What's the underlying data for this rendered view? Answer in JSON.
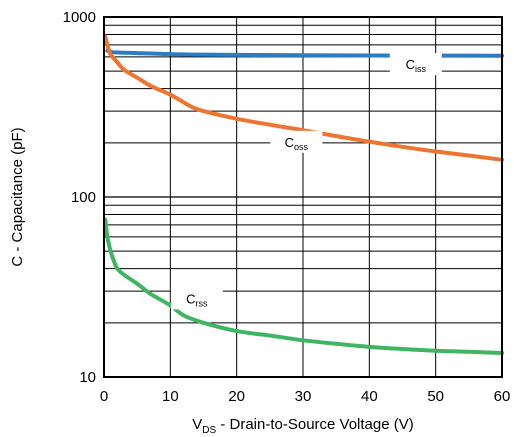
{
  "chart_data": {
    "type": "line",
    "xlabel": {
      "main": "V",
      "sub": "DS",
      "rest": " - Drain-to-Source Voltage (V)"
    },
    "ylabel": "C - Capacitance (pF)",
    "xlim": [
      0,
      60
    ],
    "ylim": [
      10,
      1000
    ],
    "yscale": "log",
    "grid": true,
    "x_ticks": [
      0,
      10,
      20,
      30,
      40,
      50,
      60
    ],
    "y_ticks": [
      10,
      100,
      1000
    ],
    "series": [
      {
        "name": "C_iss",
        "label_main": "C",
        "label_sub": "iss",
        "color": "#2e7bc0",
        "x": [
          0.5,
          1,
          2,
          5,
          10,
          15,
          20,
          30,
          40,
          50,
          60
        ],
        "y": [
          650,
          640,
          635,
          630,
          622,
          618,
          616,
          613,
          611,
          610,
          609
        ]
      },
      {
        "name": "C_oss",
        "label_main": "C",
        "label_sub": "oss",
        "color": "#ee7530",
        "x": [
          0.2,
          0.5,
          1,
          2,
          3,
          5,
          7,
          10,
          13,
          15,
          20,
          25,
          30,
          35,
          40,
          45,
          50,
          55,
          60
        ],
        "y": [
          780,
          700,
          620,
          560,
          510,
          460,
          415,
          370,
          320,
          300,
          272,
          252,
          235,
          218,
          203,
          190,
          179,
          170,
          161
        ]
      },
      {
        "name": "C_rss",
        "label_main": "C",
        "label_sub": "rss",
        "color": "#3fb562",
        "x": [
          0.2,
          0.5,
          1,
          1.5,
          2,
          3,
          5,
          7,
          10,
          12,
          15,
          20,
          25,
          30,
          35,
          40,
          45,
          50,
          55,
          60
        ],
        "y": [
          75,
          60,
          50,
          44,
          40,
          37,
          33,
          29,
          25,
          22,
          20,
          18,
          17,
          16,
          15.3,
          14.7,
          14.3,
          14,
          13.8,
          13.6
        ]
      }
    ],
    "annotations": [
      {
        "series": 0,
        "x": 47,
        "y": 540
      },
      {
        "series": 1,
        "x": 29,
        "y": 200
      },
      {
        "series": 2,
        "x": 14,
        "y": 27
      }
    ]
  }
}
